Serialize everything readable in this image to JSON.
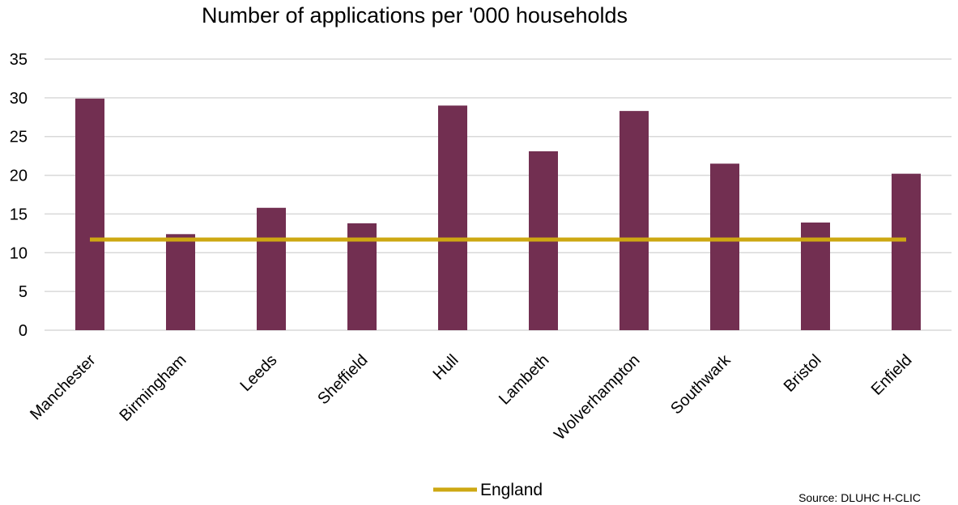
{
  "chart_data": {
    "type": "bar",
    "title": "Number of applications per '000 households",
    "categories": [
      "Manchester",
      "Birmingham",
      "Leeds",
      "Sheffield",
      "Hull",
      "Lambeth",
      "Wolverhampton",
      "Southwark",
      "Bristol",
      "Enfield"
    ],
    "series": [
      {
        "type": "bar",
        "values": [
          29.9,
          12.4,
          15.8,
          13.8,
          29.0,
          23.1,
          28.3,
          21.5,
          13.9,
          20.2
        ]
      },
      {
        "name": "England",
        "type": "line",
        "values": [
          11.7,
          11.7,
          11.7,
          11.7,
          11.7,
          11.7,
          11.7,
          11.7,
          11.7,
          11.7
        ]
      }
    ],
    "ylim": [
      0,
      35
    ],
    "yticks": [
      0,
      5,
      10,
      15,
      20,
      25,
      30,
      35
    ],
    "grid": true,
    "legend": "bottom-center",
    "source": "Source: DLUHC H-CLIC",
    "colors": {
      "bar": "#722f51",
      "line": "#cda812",
      "grid": "#d9d9d9"
    }
  }
}
